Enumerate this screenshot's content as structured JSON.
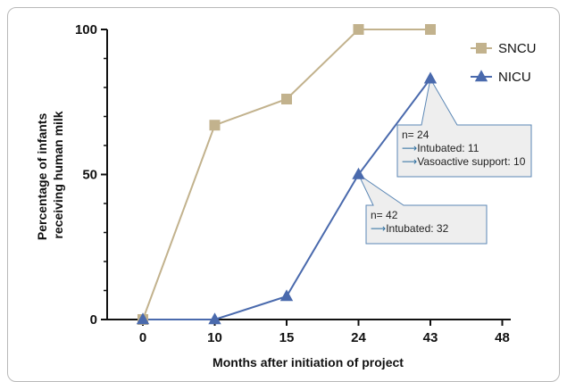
{
  "chart_data": {
    "type": "line",
    "categories": [
      "0",
      "10",
      "15",
      "24",
      "43",
      "48"
    ],
    "xlabel": "Months after initiation of project",
    "ylabel_lines": [
      "Percentage of infants",
      "receiving human milk"
    ],
    "ylim": [
      0,
      100
    ],
    "y_ticks": [
      "0",
      "50",
      "100"
    ],
    "grid": false,
    "legend_position": "top-right",
    "series": [
      {
        "name": "SNCU",
        "marker": "square",
        "color": "#c2b28d",
        "values": [
          0,
          67,
          76,
          100,
          100,
          null
        ]
      },
      {
        "name": "NICU",
        "marker": "triangle",
        "color": "#4a6aad",
        "values": [
          0,
          0,
          8,
          50,
          83,
          null
        ]
      }
    ],
    "annotations": [
      {
        "series": "NICU",
        "category": "43",
        "lines": [
          {
            "text": "n= 24",
            "arrow": false
          },
          {
            "text": "Intubated: 11",
            "arrow": true
          },
          {
            "text": "Vasoactive support: 10",
            "arrow": true
          }
        ]
      },
      {
        "series": "NICU",
        "category": "24",
        "lines": [
          {
            "text": "n= 42",
            "arrow": false
          },
          {
            "text": "Intubated: 32",
            "arrow": true
          }
        ]
      }
    ]
  }
}
